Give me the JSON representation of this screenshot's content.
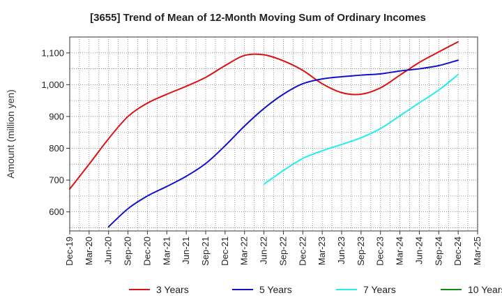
{
  "chart_data": {
    "type": "line",
    "title": "[3655]  Trend of Mean of 12-Month Moving Sum of Ordinary Incomes",
    "xlabel": "",
    "ylabel": "Amount (million yen)",
    "ylim": [
      540,
      1150
    ],
    "yticks": [
      600,
      700,
      800,
      900,
      "1,000",
      "1,100"
    ],
    "categories": [
      "Dec-19",
      "Mar-20",
      "Jun-20",
      "Sep-20",
      "Dec-20",
      "Mar-21",
      "Jun-21",
      "Sep-21",
      "Dec-21",
      "Mar-22",
      "Jun-22",
      "Sep-22",
      "Dec-22",
      "Mar-23",
      "Jun-23",
      "Sep-23",
      "Dec-23",
      "Mar-24",
      "Jun-24",
      "Sep-24",
      "Dec-24",
      "Mar-25"
    ],
    "grid": true,
    "legend_position": "bottom",
    "series": [
      {
        "name": "3 Years",
        "color": "#dd1111",
        "values": [
          672,
          750,
          830,
          900,
          942,
          970,
          995,
          1023,
          1060,
          1092,
          1094,
          1075,
          1045,
          1003,
          975,
          970,
          990,
          1030,
          1070,
          1103,
          1135,
          null
        ]
      },
      {
        "name": "5 Years",
        "color": "#1111cc",
        "values": [
          null,
          null,
          553,
          610,
          650,
          680,
          712,
          752,
          808,
          870,
          925,
          970,
          1003,
          1018,
          1025,
          1030,
          1034,
          1043,
          1050,
          1060,
          1077,
          null
        ]
      },
      {
        "name": "7 Years",
        "color": "#22eeee",
        "values": [
          null,
          null,
          null,
          null,
          null,
          null,
          null,
          null,
          null,
          null,
          687,
          730,
          768,
          792,
          812,
          833,
          862,
          902,
          943,
          983,
          1032,
          null
        ]
      },
      {
        "name": "10 Years",
        "color": "#118811",
        "values": [
          null,
          null,
          null,
          null,
          null,
          null,
          null,
          null,
          null,
          null,
          null,
          null,
          null,
          null,
          null,
          null,
          null,
          null,
          null,
          null,
          null,
          null
        ]
      }
    ]
  }
}
